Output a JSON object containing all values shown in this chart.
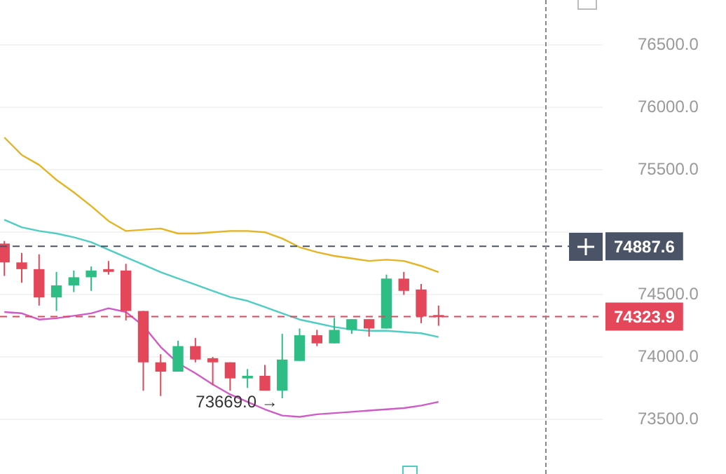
{
  "chart_data": {
    "type": "candlestick",
    "categories": [
      null,
      null,
      null,
      null,
      null,
      null,
      null,
      null,
      null,
      null,
      null,
      null,
      null,
      null,
      null,
      null,
      null,
      null,
      null,
      null,
      null,
      null,
      null,
      null,
      null,
      null
    ],
    "ohlc": [
      [
        74909,
        74930,
        74650,
        74758
      ],
      [
        74758,
        74834,
        74596,
        74704
      ],
      [
        74704,
        74823,
        74412,
        74477
      ],
      [
        74477,
        74682,
        74369,
        74574
      ],
      [
        74574,
        74693,
        74520,
        74639
      ],
      [
        74639,
        74725,
        74530,
        74693
      ],
      [
        74704,
        74769,
        74660,
        74682
      ],
      [
        74693,
        74747,
        74293,
        74369
      ],
      [
        74369,
        74369,
        73730,
        73957
      ],
      [
        73957,
        74022,
        73687,
        73882
      ],
      [
        73882,
        74130,
        73882,
        74087
      ],
      [
        74087,
        74152,
        73957,
        73979
      ],
      [
        73990,
        74000,
        73773,
        73957
      ],
      [
        73957,
        73957,
        73730,
        73828
      ],
      [
        73828,
        73903,
        73752,
        73849
      ],
      [
        73849,
        73936,
        73730,
        73730
      ],
      [
        73730,
        74185,
        73669,
        73979
      ],
      [
        73968,
        74228,
        73968,
        74174
      ],
      [
        74174,
        74217,
        74087,
        74109
      ],
      [
        74109,
        74314,
        74109,
        74217
      ],
      [
        74217,
        74303,
        74185,
        74303
      ],
      [
        74303,
        74303,
        74163,
        74228
      ],
      [
        74228,
        74660,
        74228,
        74628
      ],
      [
        74628,
        74682,
        74498,
        74530
      ],
      [
        74541,
        74585,
        74271,
        74325
      ],
      [
        74336,
        74412,
        74250,
        74324
      ]
    ],
    "colors": [
      "#e5475a",
      "#e5475a",
      "#e5475a",
      "#2ebd85",
      "#2ebd85",
      "#2ebd85",
      "#e5475a",
      "#e5475a",
      "#e5475a",
      "#e5475a",
      "#2ebd85",
      "#e5475a",
      "#e5475a",
      "#e5475a",
      "#2ebd85",
      "#e5475a",
      "#2ebd85",
      "#2ebd85",
      "#e5475a",
      "#2ebd85",
      "#2ebd85",
      "#e5475a",
      "#2ebd85",
      "#e5475a",
      "#e5475a",
      "#e5475a"
    ],
    "series": [
      {
        "type": "line",
        "color": "#e6b422",
        "values": [
          75760,
          75620,
          75540,
          75420,
          75320,
          75210,
          75090,
          75010,
          75020,
          75030,
          74990,
          74990,
          75000,
          75010,
          75010,
          75000,
          74950,
          74880,
          74840,
          74810,
          74790,
          74770,
          74780,
          74770,
          74730,
          74680
        ]
      },
      {
        "type": "line",
        "color": "#4ecdc4",
        "values": [
          75100,
          75040,
          75010,
          74990,
          74960,
          74920,
          74860,
          74800,
          74740,
          74680,
          74630,
          74580,
          74530,
          74480,
          74450,
          74400,
          74350,
          74300,
          74270,
          74240,
          74220,
          74210,
          74210,
          74200,
          74190,
          74160
        ]
      },
      {
        "type": "line",
        "color": "#d05ac8",
        "values": [
          74360,
          74350,
          74300,
          74310,
          74330,
          74350,
          74390,
          74360,
          74250,
          74080,
          73950,
          73870,
          73780,
          73700,
          73640,
          73580,
          73530,
          73520,
          73540,
          73550,
          73560,
          73570,
          73580,
          73590,
          73610,
          73640
        ]
      }
    ],
    "ylim": [
      73500,
      76500
    ],
    "yticks": [
      {
        "value": 73500,
        "label": "73500.0"
      },
      {
        "value": 74000,
        "label": "74000.0"
      },
      {
        "value": 74500,
        "label": "74500.0"
      },
      {
        "value": 75000,
        "label": null
      },
      {
        "value": 75500,
        "label": "75500.0"
      },
      {
        "value": 76000,
        "label": "76000.0"
      },
      {
        "value": 76500,
        "label": "76500.0"
      }
    ],
    "tick_labels": "y",
    "grid": "y",
    "ref_lines": [
      {
        "axis": "y",
        "value": 74887.6,
        "label": "74887.6",
        "color": "#4a5466",
        "line_style": "dashed"
      },
      {
        "axis": "y",
        "value": 74323.9,
        "label": "74323.9",
        "color": "#e5475a",
        "line_style": "dashed"
      }
    ],
    "annotations": [
      {
        "text": "73669.0 →",
        "y": 73669
      }
    ]
  }
}
